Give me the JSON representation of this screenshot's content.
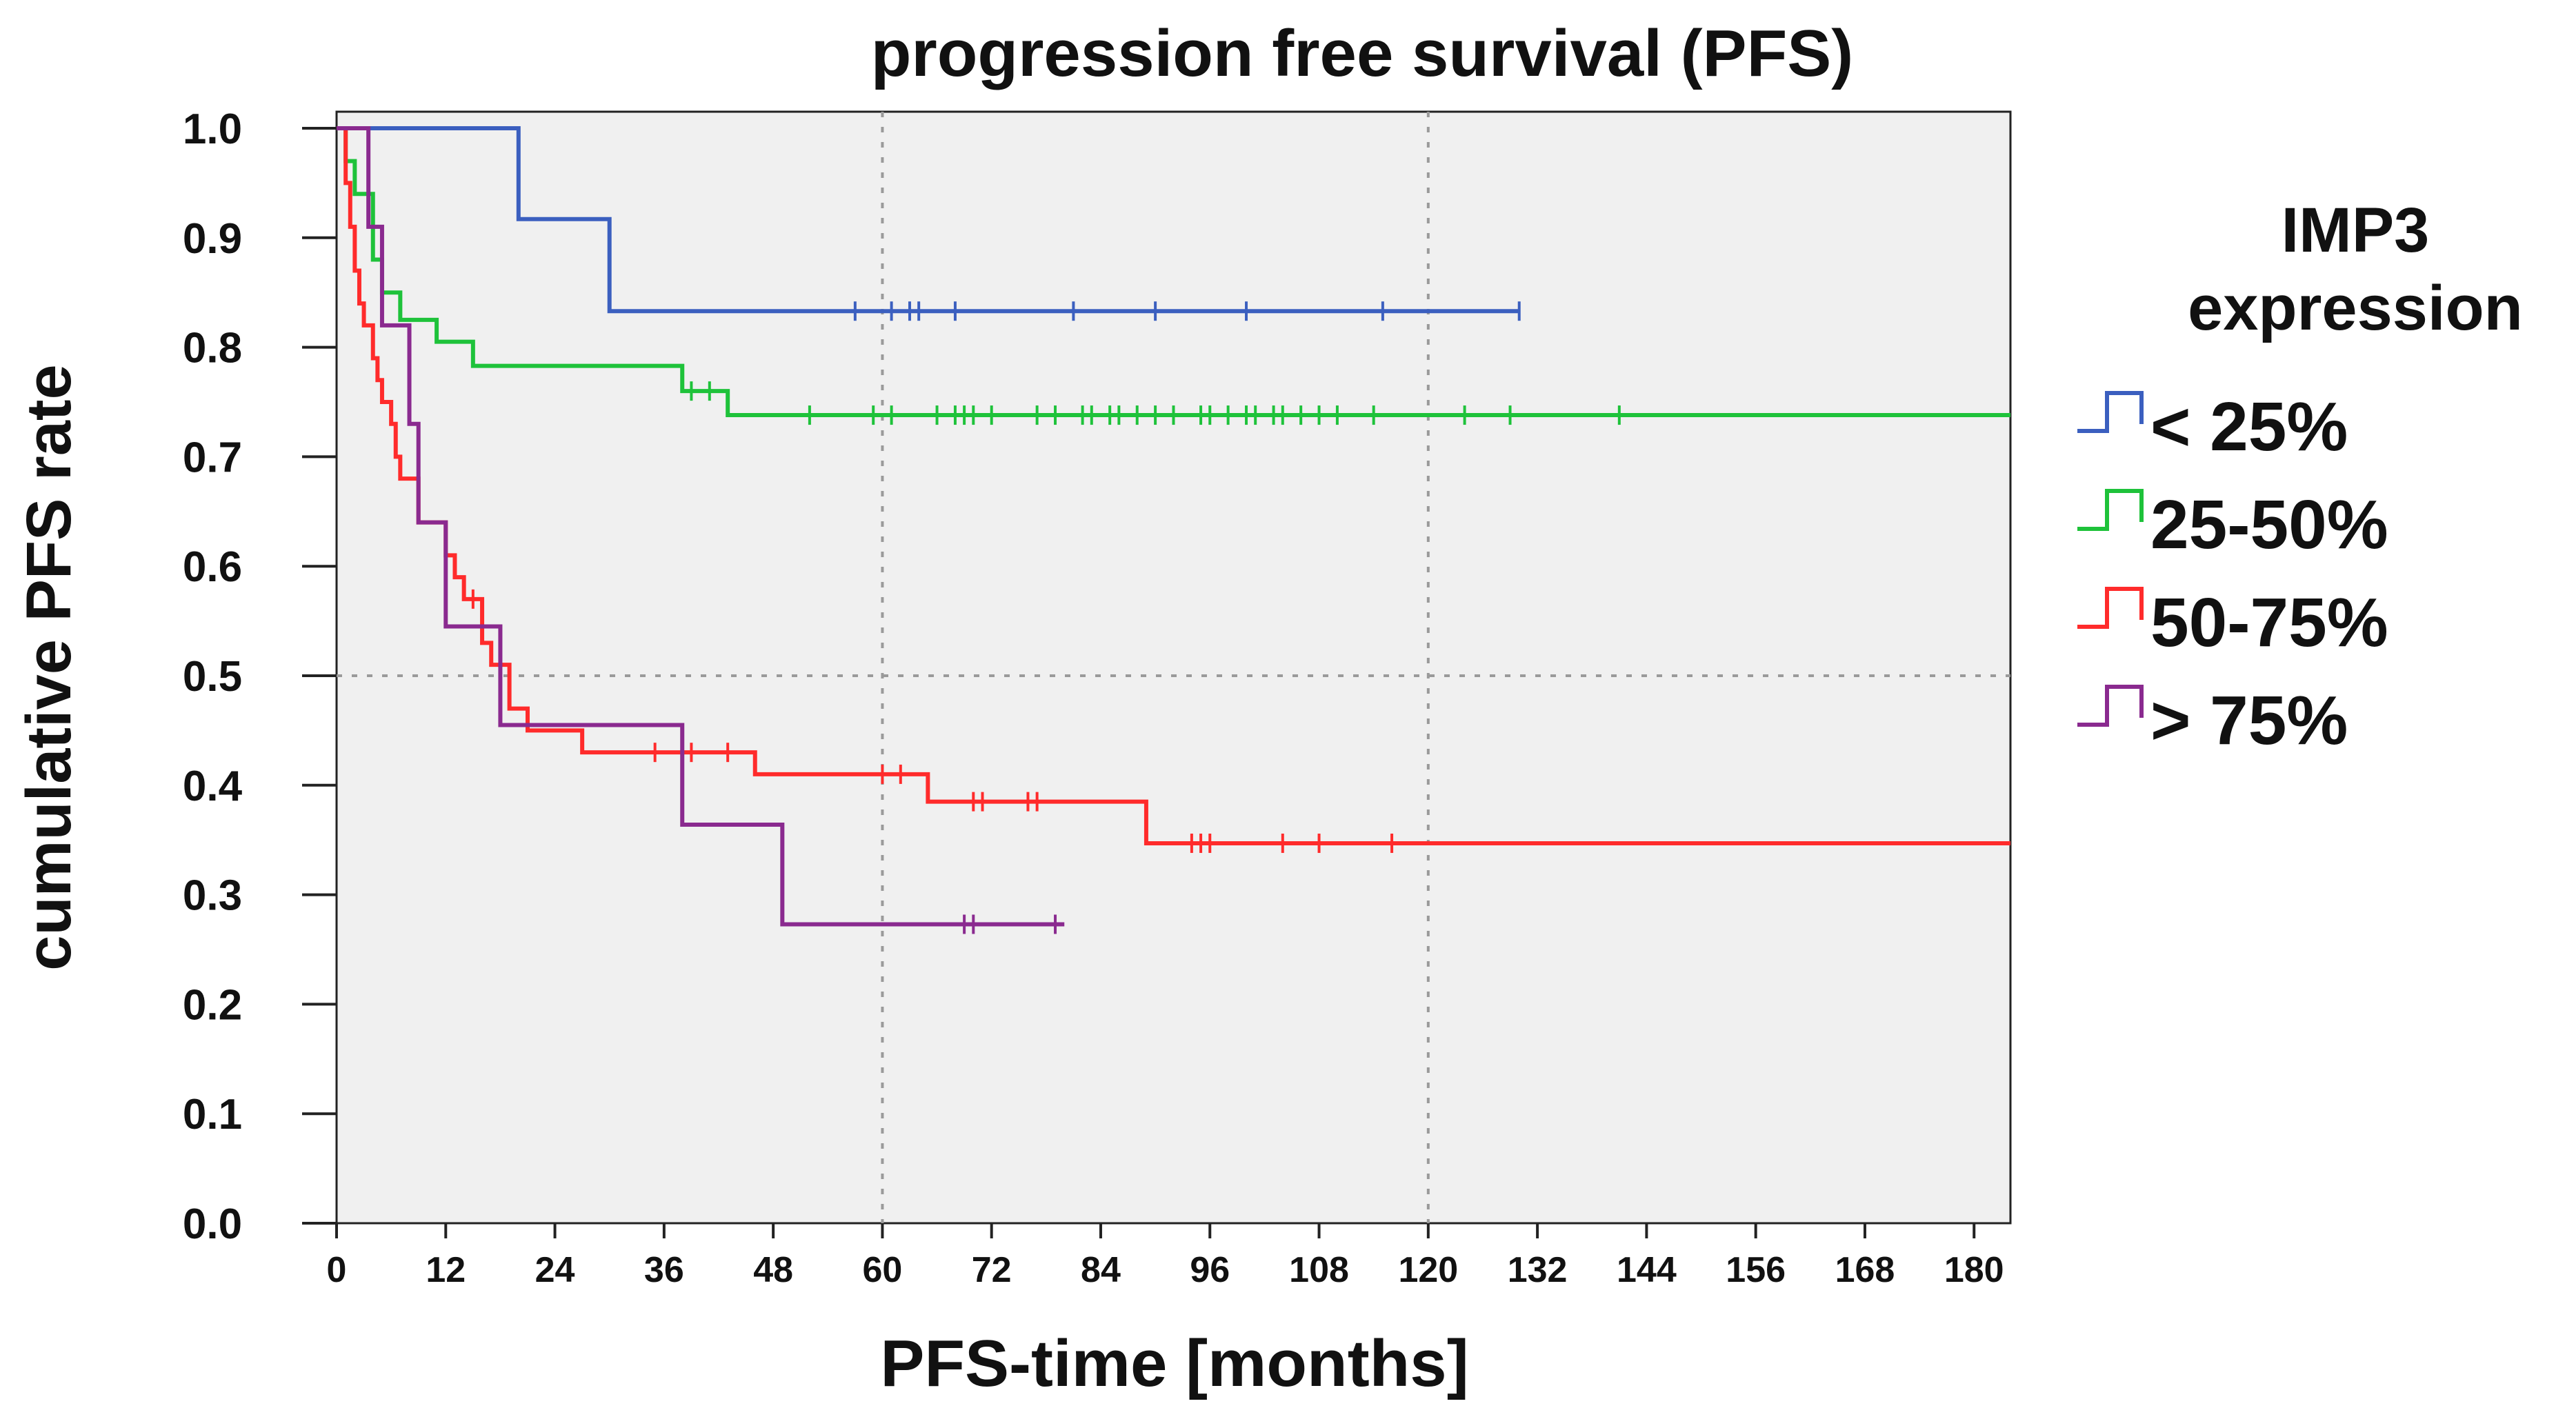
{
  "chart_data": {
    "type": "line",
    "subtype": "kaplan-meier",
    "title": "progression free survival (PFS)",
    "xlabel": "PFS-time [months]",
    "ylabel": "cumulative PFS rate",
    "xlim": [
      0,
      184
    ],
    "ylim": [
      0,
      1
    ],
    "xticks": [
      0,
      12,
      24,
      36,
      48,
      60,
      72,
      84,
      96,
      108,
      120,
      132,
      144,
      156,
      168,
      180
    ],
    "yticks": [
      0.0,
      0.1,
      0.2,
      0.3,
      0.4,
      0.5,
      0.6,
      0.7,
      0.8,
      0.9,
      1.0
    ],
    "ytick_labels": [
      "0.0",
      "0.1",
      "0.2",
      "0.3",
      "0.4",
      "0.5",
      "0.6",
      "0.7",
      "0.8",
      "0.9",
      "1.0"
    ],
    "reference_lines": {
      "x": [
        60,
        120
      ],
      "y": [
        0.5
      ]
    },
    "plot_background": "#f0f0f0",
    "legend": {
      "title_line1": "IMP3",
      "title_line2": "expression",
      "position": "right"
    },
    "series": [
      {
        "name": "< 25%",
        "color": "#3b5fbf",
        "steps": [
          [
            0,
            1.0
          ],
          [
            20,
            0.917
          ],
          [
            30,
            0.833
          ]
        ],
        "end": 130,
        "censored": [
          57,
          61,
          63,
          64,
          68,
          81,
          90,
          100,
          115,
          130
        ]
      },
      {
        "name": "25-50%",
        "color": "#1ec23a",
        "steps": [
          [
            0,
            1.0
          ],
          [
            1,
            0.97
          ],
          [
            2,
            0.94
          ],
          [
            4,
            0.88
          ],
          [
            5,
            0.85
          ],
          [
            7,
            0.825
          ],
          [
            11,
            0.805
          ],
          [
            15,
            0.783
          ],
          [
            38,
            0.76
          ],
          [
            43,
            0.738
          ]
        ],
        "end": 184,
        "censored": [
          39,
          41,
          52,
          59,
          61,
          66,
          68,
          69,
          70,
          72,
          77,
          79,
          82,
          83,
          85,
          86,
          88,
          90,
          92,
          95,
          96,
          98,
          100,
          101,
          103,
          104,
          106,
          108,
          110,
          114,
          124,
          129,
          141
        ]
      },
      {
        "name": "50-75%",
        "color": "#ff2b2b",
        "steps": [
          [
            0,
            1.0
          ],
          [
            1,
            0.95
          ],
          [
            1.5,
            0.91
          ],
          [
            2,
            0.87
          ],
          [
            2.5,
            0.84
          ],
          [
            3,
            0.82
          ],
          [
            4,
            0.79
          ],
          [
            4.5,
            0.77
          ],
          [
            5,
            0.75
          ],
          [
            6,
            0.73
          ],
          [
            6.5,
            0.7
          ],
          [
            7,
            0.68
          ],
          [
            9,
            0.64
          ],
          [
            12,
            0.61
          ],
          [
            13,
            0.59
          ],
          [
            14,
            0.57
          ],
          [
            16,
            0.53
          ],
          [
            17,
            0.51
          ],
          [
            19,
            0.47
          ],
          [
            21,
            0.45
          ],
          [
            27,
            0.43
          ],
          [
            46,
            0.41
          ],
          [
            65,
            0.385
          ],
          [
            89,
            0.347
          ]
        ],
        "end": 184,
        "censored": [
          15,
          35,
          39,
          43,
          60,
          62,
          70,
          71,
          76,
          77,
          94,
          95,
          96,
          104,
          108,
          116
        ]
      },
      {
        "name": "> 75%",
        "color": "#8a2a8f",
        "steps": [
          [
            0,
            1.0
          ],
          [
            3.5,
            0.91
          ],
          [
            5,
            0.82
          ],
          [
            8,
            0.73
          ],
          [
            9,
            0.64
          ],
          [
            12,
            0.545
          ],
          [
            18,
            0.455
          ],
          [
            38,
            0.364
          ],
          [
            49,
            0.273
          ]
        ],
        "end": 80,
        "censored": [
          69,
          70,
          79
        ]
      }
    ]
  }
}
